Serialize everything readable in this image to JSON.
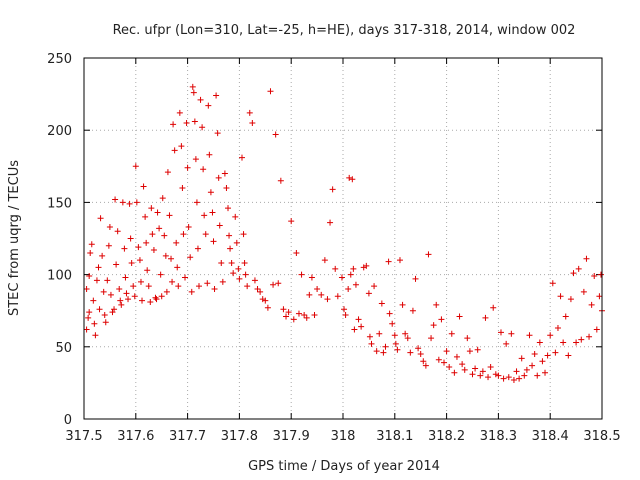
{
  "chart_data": {
    "type": "scatter",
    "title": "Rec. ufpr (Lon=310, Lat=-25, h=HE), days 317-318, 2014, window 002",
    "xlabel": "GPS time / Days of year 2014",
    "ylabel": "STEC from uqrg / TECUs",
    "xlim": [
      317.5,
      318.5
    ],
    "ylim": [
      0,
      250
    ],
    "xticks": [
      317.5,
      317.6,
      317.7,
      317.8,
      317.9,
      318,
      318.1,
      318.2,
      318.3,
      318.4,
      318.5
    ],
    "xtick_labels": [
      "317.5",
      "317.6",
      "317.7",
      "317.8",
      "317.9",
      "318",
      "318.1",
      "318.2",
      "318.3",
      "318.4",
      "318.5"
    ],
    "yticks": [
      0,
      50,
      100,
      150,
      200,
      250
    ],
    "ytick_labels": [
      "0",
      "50",
      "100",
      "150",
      "200",
      "250"
    ],
    "grid": true,
    "marker": "plus",
    "color": "#dd0000",
    "points": [
      [
        317.505,
        62
      ],
      [
        317.508,
        70
      ],
      [
        317.51,
        74
      ],
      [
        317.505,
        90
      ],
      [
        317.51,
        99
      ],
      [
        317.512,
        115
      ],
      [
        317.515,
        121
      ],
      [
        317.518,
        82
      ],
      [
        317.52,
        66
      ],
      [
        317.522,
        58
      ],
      [
        317.525,
        96
      ],
      [
        317.528,
        105
      ],
      [
        317.53,
        76
      ],
      [
        317.532,
        139
      ],
      [
        317.535,
        113
      ],
      [
        317.538,
        88
      ],
      [
        317.54,
        72
      ],
      [
        317.542,
        67
      ],
      [
        317.545,
        96
      ],
      [
        317.548,
        120
      ],
      [
        317.55,
        133
      ],
      [
        317.552,
        86
      ],
      [
        317.555,
        74
      ],
      [
        317.558,
        76
      ],
      [
        317.56,
        152
      ],
      [
        317.562,
        107
      ],
      [
        317.565,
        130
      ],
      [
        317.568,
        90
      ],
      [
        317.57,
        82
      ],
      [
        317.572,
        79
      ],
      [
        317.575,
        150
      ],
      [
        317.578,
        118
      ],
      [
        317.58,
        98
      ],
      [
        317.582,
        87
      ],
      [
        317.585,
        83
      ],
      [
        317.588,
        149
      ],
      [
        317.59,
        125
      ],
      [
        317.592,
        108
      ],
      [
        317.595,
        92
      ],
      [
        317.598,
        85
      ],
      [
        317.6,
        175
      ],
      [
        317.602,
        150
      ],
      [
        317.605,
        119
      ],
      [
        317.608,
        110
      ],
      [
        317.61,
        95
      ],
      [
        317.612,
        82
      ],
      [
        317.615,
        161
      ],
      [
        317.618,
        140
      ],
      [
        317.62,
        122
      ],
      [
        317.622,
        103
      ],
      [
        317.625,
        92
      ],
      [
        317.628,
        81
      ],
      [
        317.63,
        146
      ],
      [
        317.632,
        128
      ],
      [
        317.635,
        117
      ],
      [
        317.638,
        84
      ],
      [
        317.64,
        83
      ],
      [
        317.642,
        143
      ],
      [
        317.645,
        132
      ],
      [
        317.648,
        100
      ],
      [
        317.65,
        85
      ],
      [
        317.652,
        153
      ],
      [
        317.655,
        127
      ],
      [
        317.658,
        113
      ],
      [
        317.66,
        88
      ],
      [
        317.662,
        171
      ],
      [
        317.665,
        141
      ],
      [
        317.668,
        111
      ],
      [
        317.67,
        95
      ],
      [
        317.672,
        204
      ],
      [
        317.675,
        186
      ],
      [
        317.678,
        122
      ],
      [
        317.68,
        105
      ],
      [
        317.682,
        92
      ],
      [
        317.685,
        212
      ],
      [
        317.688,
        189
      ],
      [
        317.69,
        160
      ],
      [
        317.692,
        128
      ],
      [
        317.695,
        98
      ],
      [
        317.698,
        205
      ],
      [
        317.7,
        174
      ],
      [
        317.702,
        133
      ],
      [
        317.705,
        112
      ],
      [
        317.708,
        88
      ],
      [
        317.71,
        230
      ],
      [
        317.712,
        226
      ],
      [
        317.714,
        206
      ],
      [
        317.716,
        180
      ],
      [
        317.718,
        150
      ],
      [
        317.72,
        118
      ],
      [
        317.722,
        92
      ],
      [
        317.725,
        221
      ],
      [
        317.728,
        202
      ],
      [
        317.73,
        173
      ],
      [
        317.732,
        141
      ],
      [
        317.735,
        128
      ],
      [
        317.738,
        94
      ],
      [
        317.74,
        217
      ],
      [
        317.742,
        183
      ],
      [
        317.745,
        157
      ],
      [
        317.748,
        143
      ],
      [
        317.75,
        123
      ],
      [
        317.752,
        90
      ],
      [
        317.755,
        224
      ],
      [
        317.758,
        198
      ],
      [
        317.76,
        167
      ],
      [
        317.762,
        134
      ],
      [
        317.765,
        108
      ],
      [
        317.768,
        95
      ],
      [
        317.772,
        170
      ],
      [
        317.775,
        160
      ],
      [
        317.778,
        146
      ],
      [
        317.78,
        127
      ],
      [
        317.782,
        118
      ],
      [
        317.785,
        108
      ],
      [
        317.788,
        101
      ],
      [
        317.792,
        140
      ],
      [
        317.795,
        122
      ],
      [
        317.798,
        104
      ],
      [
        317.8,
        97
      ],
      [
        317.805,
        181
      ],
      [
        317.808,
        128
      ],
      [
        317.81,
        108
      ],
      [
        317.812,
        100
      ],
      [
        317.815,
        92
      ],
      [
        317.82,
        212
      ],
      [
        317.825,
        205
      ],
      [
        317.83,
        96
      ],
      [
        317.835,
        90
      ],
      [
        317.84,
        88
      ],
      [
        317.845,
        83
      ],
      [
        317.85,
        82
      ],
      [
        317.855,
        77
      ],
      [
        317.86,
        227
      ],
      [
        317.865,
        93
      ],
      [
        317.87,
        197
      ],
      [
        317.875,
        94
      ],
      [
        317.88,
        165
      ],
      [
        317.885,
        76
      ],
      [
        317.89,
        71
      ],
      [
        317.895,
        74
      ],
      [
        317.9,
        137
      ],
      [
        317.905,
        69
      ],
      [
        317.91,
        115
      ],
      [
        317.915,
        73
      ],
      [
        317.92,
        100
      ],
      [
        317.925,
        72
      ],
      [
        317.93,
        70
      ],
      [
        317.935,
        86
      ],
      [
        317.94,
        98
      ],
      [
        317.945,
        72
      ],
      [
        317.95,
        90
      ],
      [
        317.958,
        86
      ],
      [
        317.965,
        110
      ],
      [
        317.97,
        83
      ],
      [
        317.975,
        136
      ],
      [
        317.98,
        159
      ],
      [
        317.985,
        104
      ],
      [
        317.99,
        85
      ],
      [
        317.998,
        98
      ],
      [
        318.002,
        76
      ],
      [
        318.005,
        72
      ],
      [
        318.01,
        90
      ],
      [
        318.012,
        167
      ],
      [
        318.015,
        100
      ],
      [
        318.018,
        166
      ],
      [
        318.02,
        104
      ],
      [
        318.022,
        62
      ],
      [
        318.025,
        93
      ],
      [
        318.03,
        69
      ],
      [
        318.035,
        64
      ],
      [
        318.04,
        105
      ],
      [
        318.045,
        106
      ],
      [
        318.05,
        87
      ],
      [
        318.052,
        57
      ],
      [
        318.055,
        52
      ],
      [
        318.06,
        92
      ],
      [
        318.065,
        47
      ],
      [
        318.07,
        59
      ],
      [
        318.075,
        80
      ],
      [
        318.078,
        46
      ],
      [
        318.082,
        50
      ],
      [
        318.088,
        109
      ],
      [
        318.09,
        73
      ],
      [
        318.095,
        66
      ],
      [
        318.1,
        58
      ],
      [
        318.102,
        52
      ],
      [
        318.105,
        48
      ],
      [
        318.11,
        110
      ],
      [
        318.115,
        79
      ],
      [
        318.12,
        59
      ],
      [
        318.125,
        56
      ],
      [
        318.13,
        46
      ],
      [
        318.135,
        75
      ],
      [
        318.14,
        97
      ],
      [
        318.145,
        49
      ],
      [
        318.15,
        45
      ],
      [
        318.155,
        40
      ],
      [
        318.16,
        37
      ],
      [
        318.165,
        114
      ],
      [
        318.17,
        56
      ],
      [
        318.175,
        65
      ],
      [
        318.18,
        79
      ],
      [
        318.185,
        41
      ],
      [
        318.19,
        69
      ],
      [
        318.195,
        39
      ],
      [
        318.2,
        47
      ],
      [
        318.205,
        36
      ],
      [
        318.21,
        59
      ],
      [
        318.215,
        32
      ],
      [
        318.22,
        43
      ],
      [
        318.225,
        71
      ],
      [
        318.23,
        38
      ],
      [
        318.235,
        34
      ],
      [
        318.24,
        56
      ],
      [
        318.245,
        47
      ],
      [
        318.25,
        31
      ],
      [
        318.255,
        35
      ],
      [
        318.26,
        48
      ],
      [
        318.265,
        30
      ],
      [
        318.27,
        33
      ],
      [
        318.275,
        70
      ],
      [
        318.28,
        29
      ],
      [
        318.285,
        36
      ],
      [
        318.29,
        77
      ],
      [
        318.295,
        31
      ],
      [
        318.3,
        30
      ],
      [
        318.305,
        60
      ],
      [
        318.31,
        28
      ],
      [
        318.315,
        52
      ],
      [
        318.32,
        29
      ],
      [
        318.325,
        59
      ],
      [
        318.33,
        27
      ],
      [
        318.335,
        33
      ],
      [
        318.34,
        28
      ],
      [
        318.345,
        42
      ],
      [
        318.35,
        30
      ],
      [
        318.355,
        34
      ],
      [
        318.36,
        58
      ],
      [
        318.365,
        37
      ],
      [
        318.37,
        45
      ],
      [
        318.375,
        30
      ],
      [
        318.38,
        53
      ],
      [
        318.385,
        40
      ],
      [
        318.39,
        32
      ],
      [
        318.395,
        44
      ],
      [
        318.4,
        58
      ],
      [
        318.405,
        94
      ],
      [
        318.41,
        46
      ],
      [
        318.415,
        63
      ],
      [
        318.42,
        85
      ],
      [
        318.425,
        53
      ],
      [
        318.43,
        71
      ],
      [
        318.435,
        44
      ],
      [
        318.44,
        83
      ],
      [
        318.445,
        101
      ],
      [
        318.45,
        53
      ],
      [
        318.455,
        104
      ],
      [
        318.46,
        55
      ],
      [
        318.465,
        88
      ],
      [
        318.47,
        111
      ],
      [
        318.475,
        57
      ],
      [
        318.48,
        79
      ],
      [
        318.485,
        99
      ],
      [
        318.49,
        62
      ],
      [
        318.495,
        85
      ],
      [
        318.498,
        100
      ],
      [
        318.5,
        75
      ]
    ]
  }
}
